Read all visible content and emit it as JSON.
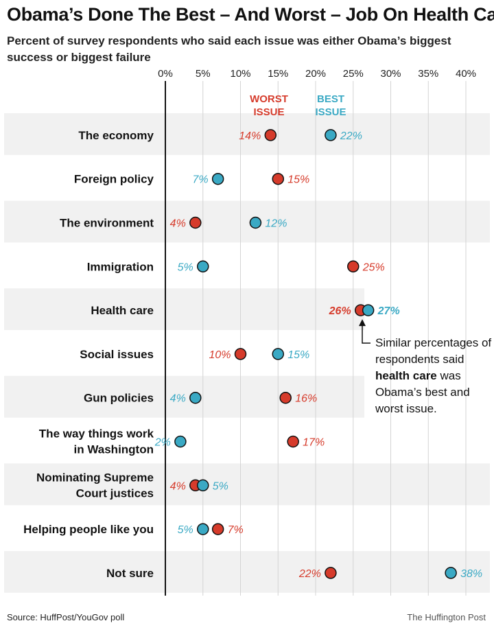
{
  "title": "Obama’s Done The Best – And Worst – Job On Health Care",
  "subtitle": "Percent of survey respondents who said each issue was either Obama’s biggest success or biggest failure",
  "source": "Source: HuffPost/YouGov poll",
  "credit": "The Huffington Post",
  "annotation": {
    "before": "Similar percentages of respondents said ",
    "bold": "health care",
    "after": " was Obama’s best and worst issue."
  },
  "colors": {
    "worst": "#d63b2b",
    "best": "#3aa9c4",
    "band": "#f1f1f1",
    "grid": "#d4d4d4"
  },
  "chart_data": {
    "type": "dot",
    "xlim": [
      0,
      40
    ],
    "x_ticks": [
      "0%",
      "5%",
      "10%",
      "15%",
      "20%",
      "25%",
      "30%",
      "35%",
      "40%"
    ],
    "legend": [
      "WORST ISSUE",
      "BEST ISSUE"
    ],
    "categories": [
      [
        "The economy"
      ],
      [
        "Foreign policy"
      ],
      [
        "The environment"
      ],
      [
        "Immigration"
      ],
      [
        "Health care"
      ],
      [
        "Social issues"
      ],
      [
        "Gun policies"
      ],
      [
        "The way things work",
        "in Washington"
      ],
      [
        "Nominating Supreme",
        "Court justices"
      ],
      [
        "Helping people like you"
      ],
      [
        "Not sure"
      ]
    ],
    "series": [
      {
        "name": "WORST ISSUE",
        "values": [
          14,
          15,
          4,
          25,
          26,
          10,
          16,
          17,
          4,
          7,
          22
        ]
      },
      {
        "name": "BEST ISSUE",
        "values": [
          22,
          7,
          12,
          5,
          27,
          15,
          4,
          2,
          5,
          5,
          38
        ]
      }
    ],
    "value_labels": {
      "worst": [
        "14%",
        "15%",
        "4%",
        "25%",
        "26%",
        "10%",
        "16%",
        "17%",
        "4%",
        "7%",
        "22%"
      ],
      "best": [
        "22%",
        "7%",
        "12%",
        "5%",
        "27%",
        "15%",
        "4%",
        "2%",
        "5%",
        "5%",
        "38%"
      ]
    }
  }
}
